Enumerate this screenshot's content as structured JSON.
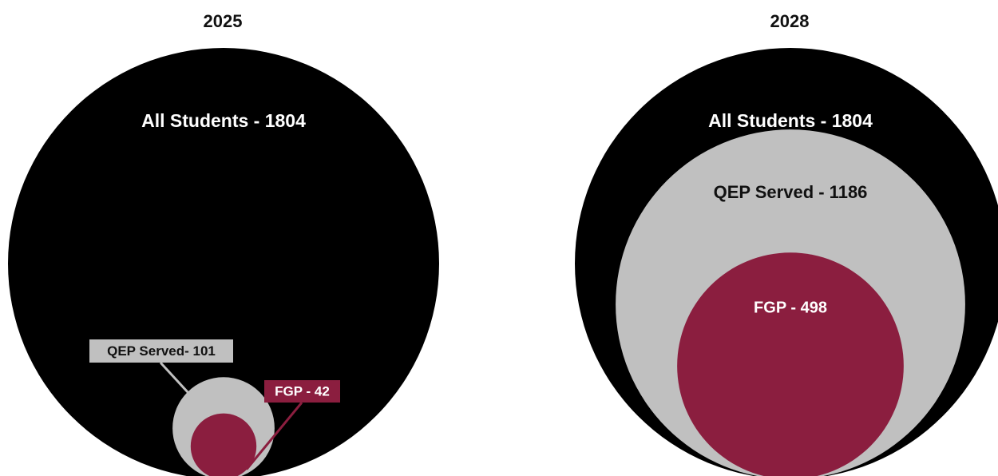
{
  "colors": {
    "all_students": "#000000",
    "qep_served": "#c0c0c0",
    "fgp": "#8b1e3f",
    "label_text_light": "#ffffff",
    "label_text_dark": "#111111",
    "leader_line_qep": "#c0c0c0",
    "leader_line_fgp": "#8b1e3f"
  },
  "chart_data": [
    {
      "type": "nested-bubble",
      "title": "2025",
      "items": [
        {
          "key": "all",
          "label": "All Students - 1804",
          "value": 1804,
          "color": "#000000"
        },
        {
          "key": "qep",
          "label": "QEP Served- 101",
          "value": 101,
          "color": "#c0c0c0"
        },
        {
          "key": "fgp",
          "label": "FGP - 42",
          "value": 42,
          "color": "#8b1e3f"
        }
      ]
    },
    {
      "type": "nested-bubble",
      "title": "2028",
      "items": [
        {
          "key": "all",
          "label": "All Students - 1804",
          "value": 1804,
          "color": "#000000"
        },
        {
          "key": "qep",
          "label": "QEP Served - 1186",
          "value": 1186,
          "color": "#c0c0c0"
        },
        {
          "key": "fgp",
          "label": "FGP - 498",
          "value": 498,
          "color": "#8b1e3f"
        }
      ]
    }
  ]
}
